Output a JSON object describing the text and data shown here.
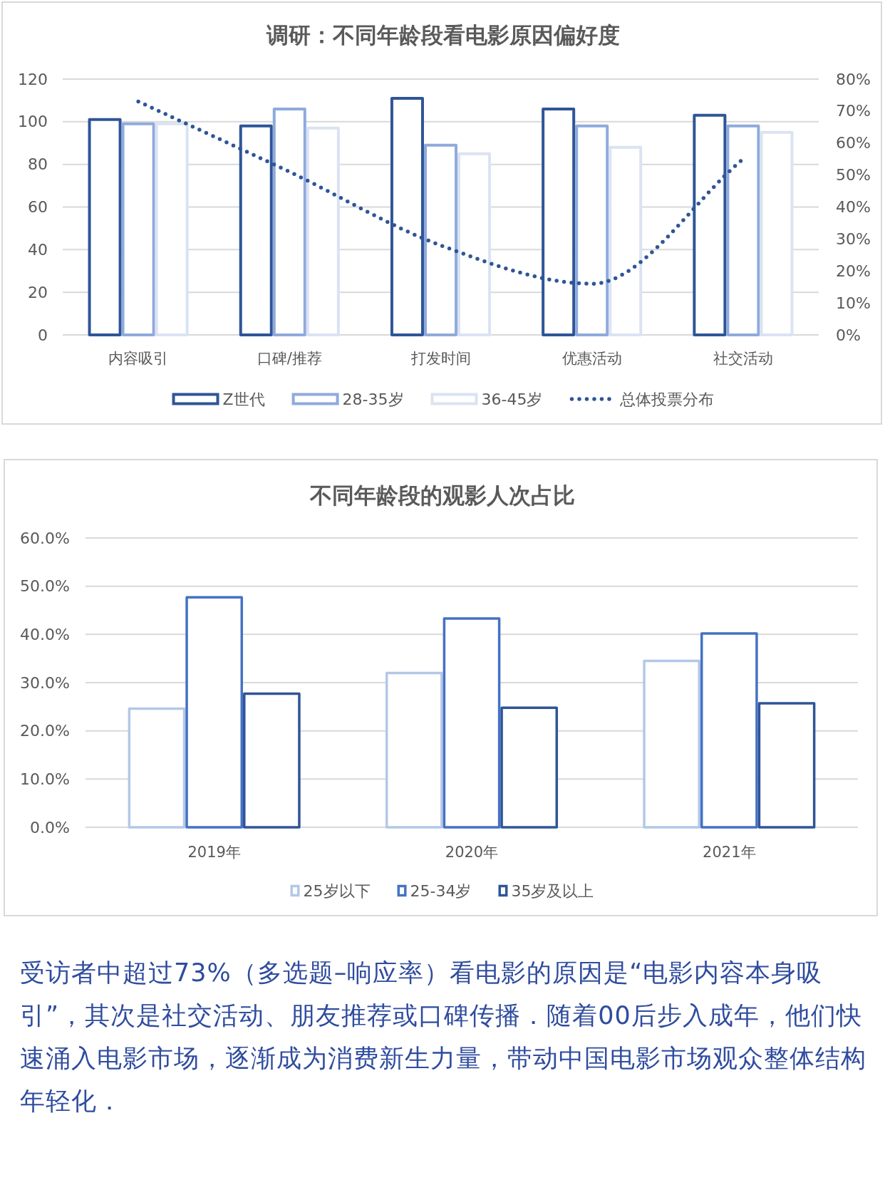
{
  "chart_data": [
    {
      "type": "bar",
      "title": "调研：不同年龄段看电影原因偏好度",
      "categories": [
        "内容吸引",
        "口碑/推荐",
        "打发时间",
        "优惠活动",
        "社交活动"
      ],
      "series": [
        {
          "name": "Z世代",
          "color": "#2f5597",
          "values": [
            101,
            98,
            111,
            106,
            103
          ]
        },
        {
          "name": "28-35岁",
          "color": "#8faadc",
          "values": [
            99,
            106,
            89,
            98,
            98
          ]
        },
        {
          "name": "36-45岁",
          "color": "#dae3f3",
          "values": [
            99,
            97,
            85,
            88,
            95
          ]
        },
        {
          "name": "总体投票分布",
          "type": "line",
          "axis": "y2",
          "line_style": "dotted",
          "color": "#2f5597",
          "values": [
            73,
            51,
            28,
            16,
            55
          ]
        }
      ],
      "ylim": [
        0,
        120
      ],
      "yticks": [
        0,
        20,
        40,
        60,
        80,
        100,
        120
      ],
      "y2lim": [
        0,
        80
      ],
      "y2ticks": [
        {
          "value": 0,
          "label": "0%"
        },
        {
          "value": 10,
          "label": "10%"
        },
        {
          "value": 20,
          "label": "20%"
        },
        {
          "value": 30,
          "label": "30%"
        },
        {
          "value": 40,
          "label": "40%"
        },
        {
          "value": 50,
          "label": "50%"
        },
        {
          "value": 60,
          "label": "60%"
        },
        {
          "value": 70,
          "label": "70%"
        },
        {
          "value": 80,
          "label": "80%"
        }
      ],
      "grid": "y",
      "legend": "bottom"
    },
    {
      "type": "bar",
      "title": "不同年龄段的观影人次占比",
      "categories": [
        "2019年",
        "2020年",
        "2021年"
      ],
      "series": [
        {
          "name": "25岁以下",
          "color": "#b4c7e7",
          "values": [
            24.6,
            32.0,
            34.5
          ]
        },
        {
          "name": "25-34岁",
          "color": "#4472c4",
          "values": [
            47.7,
            43.3,
            40.2
          ]
        },
        {
          "name": "35岁及以上",
          "color": "#2f5597",
          "values": [
            27.7,
            24.8,
            25.7
          ]
        }
      ],
      "ylim": [
        0,
        60
      ],
      "yticks": [
        {
          "value": 0,
          "label": "0.0%"
        },
        {
          "value": 10,
          "label": "10.0%"
        },
        {
          "value": 20,
          "label": "20.0%"
        },
        {
          "value": 30,
          "label": "30.0%"
        },
        {
          "value": 40,
          "label": "40.0%"
        },
        {
          "value": 50,
          "label": "50.0%"
        },
        {
          "value": 60,
          "label": "60.0%"
        }
      ],
      "grid": "y",
      "legend": "bottom"
    },
    {
      "type": "other",
      "annotations": [
        "受访者中超过73%（多选题–响应率）看电影的原因是“电影内容本身吸引”，其次是社交活动、朋友推荐或口碑传播．随着00后步入成年，他们快速涌入电影市场，逐渐成为消费新生力量，带动中国电影市场观众整体结构年轻化．"
      ]
    }
  ]
}
